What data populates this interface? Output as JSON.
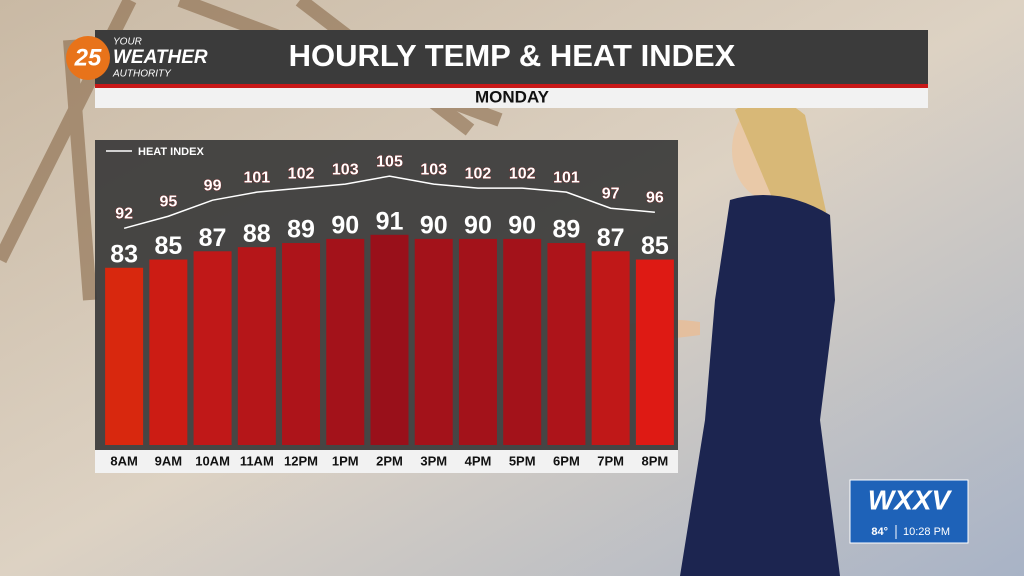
{
  "chart_data": {
    "type": "bar",
    "title": "HOURLY TEMP & HEAT INDEX",
    "subtitle": "MONDAY",
    "categories": [
      "8AM",
      "9AM",
      "10AM",
      "11AM",
      "12PM",
      "1PM",
      "2PM",
      "3PM",
      "4PM",
      "5PM",
      "6PM",
      "7PM",
      "8PM"
    ],
    "values": [
      83,
      85,
      87,
      88,
      89,
      90,
      91,
      90,
      90,
      90,
      89,
      87,
      85
    ],
    "colors": [
      "#d8280e",
      "#cc1c14",
      "#c01818",
      "#b51619",
      "#ad141a",
      "#a3121a",
      "#99101a",
      "#a3121a",
      "#a3121a",
      "#a3121a",
      "#ad141a",
      "#c01818",
      "#de1a14"
    ],
    "ylim": [
      40,
      114
    ],
    "heat_index": {
      "name": "HEAT INDEX",
      "color": "#ffffff",
      "values": [
        92,
        95,
        99,
        101,
        102,
        103,
        105,
        103,
        102,
        102,
        101,
        97,
        96
      ]
    },
    "y2lim": [
      38,
      114
    ]
  },
  "logo": {
    "number": "25",
    "line1": "YOUR",
    "line2": "WEATHER",
    "line3": "AUTHORITY"
  },
  "station_bug": {
    "station": "WXXV",
    "temperature": "84°",
    "time": "10:28 PM"
  }
}
